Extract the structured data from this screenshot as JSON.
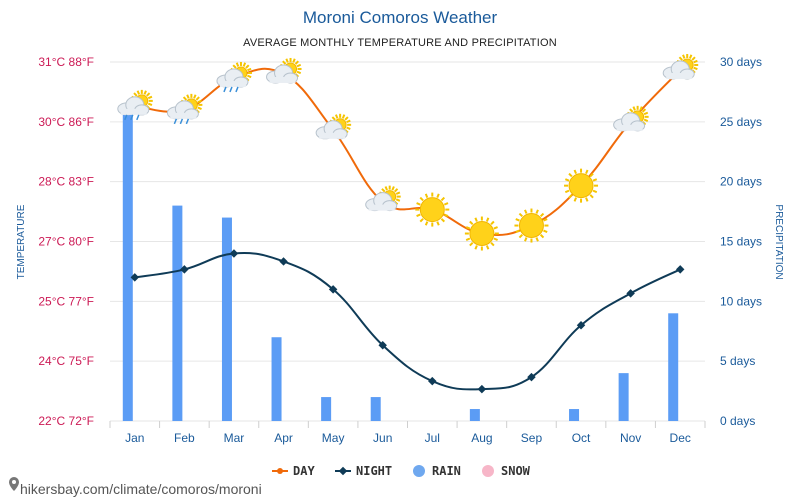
{
  "header": {
    "title": "Moroni Comoros Weather",
    "subtitle": "AVERAGE MONTHLY TEMPERATURE AND PRECIPITATION"
  },
  "axes": {
    "left_title": "TEMPERATURE",
    "right_title": "PRECIPITATION",
    "left_ticks": [
      "22°C 72°F",
      "24°C 75°F",
      "25°C 77°F",
      "27°C 80°F",
      "28°C 83°F",
      "30°C 86°F",
      "31°C 88°F"
    ],
    "right_ticks": [
      "0 days",
      "5 days",
      "10 days",
      "15 days",
      "20 days",
      "25 days",
      "30 days"
    ]
  },
  "legend": {
    "day": "DAY",
    "night": "NIGHT",
    "rain": "RAIN",
    "snow": "SNOW"
  },
  "footer": {
    "source": "hikersbay.com/climate/comoros/moroni"
  },
  "colors": {
    "day": "#f06a0a",
    "night": "#0f3b57",
    "rain": "#5b9cf5",
    "snow": "#f7b6c8",
    "grid": "#e6e6e6"
  },
  "chart_data": {
    "type": "line",
    "title": "Moroni Comoros Weather",
    "subtitle": "AVERAGE MONTHLY TEMPERATURE AND PRECIPITATION",
    "categories": [
      "Jan",
      "Feb",
      "Mar",
      "Apr",
      "May",
      "Jun",
      "Jul",
      "Aug",
      "Sep",
      "Oct",
      "Nov",
      "Dec"
    ],
    "temperature_ylim": [
      22,
      31
    ],
    "precipitation_ylim": [
      0,
      30
    ],
    "series": [
      {
        "name": "DAY",
        "axis": "temperature",
        "values": [
          29.9,
          29.8,
          30.6,
          30.7,
          29.3,
          27.5,
          27.3,
          26.7,
          26.9,
          27.9,
          29.5,
          30.8
        ]
      },
      {
        "name": "NIGHT",
        "axis": "temperature",
        "values": [
          25.6,
          25.8,
          26.2,
          26.0,
          25.3,
          23.9,
          23.0,
          22.8,
          23.1,
          24.4,
          25.2,
          25.8
        ]
      },
      {
        "name": "RAIN",
        "axis": "precipitation",
        "type": "bar",
        "values": [
          26,
          18,
          17,
          7,
          2,
          2,
          0,
          1,
          0,
          1,
          4,
          9
        ]
      },
      {
        "name": "SNOW",
        "axis": "precipitation",
        "type": "bar",
        "values": [
          0,
          0,
          0,
          0,
          0,
          0,
          0,
          0,
          0,
          0,
          0,
          0
        ]
      }
    ],
    "weather_icons": [
      "cloud-sun-rain",
      "cloud-sun-rain",
      "cloud-sun-rain",
      "cloud-sun",
      "cloud-sun",
      "cloud-sun",
      "sun",
      "sun",
      "sun",
      "sun",
      "cloud-sun",
      "cloud-sun"
    ],
    "grid": true,
    "legend_position": "bottom"
  }
}
